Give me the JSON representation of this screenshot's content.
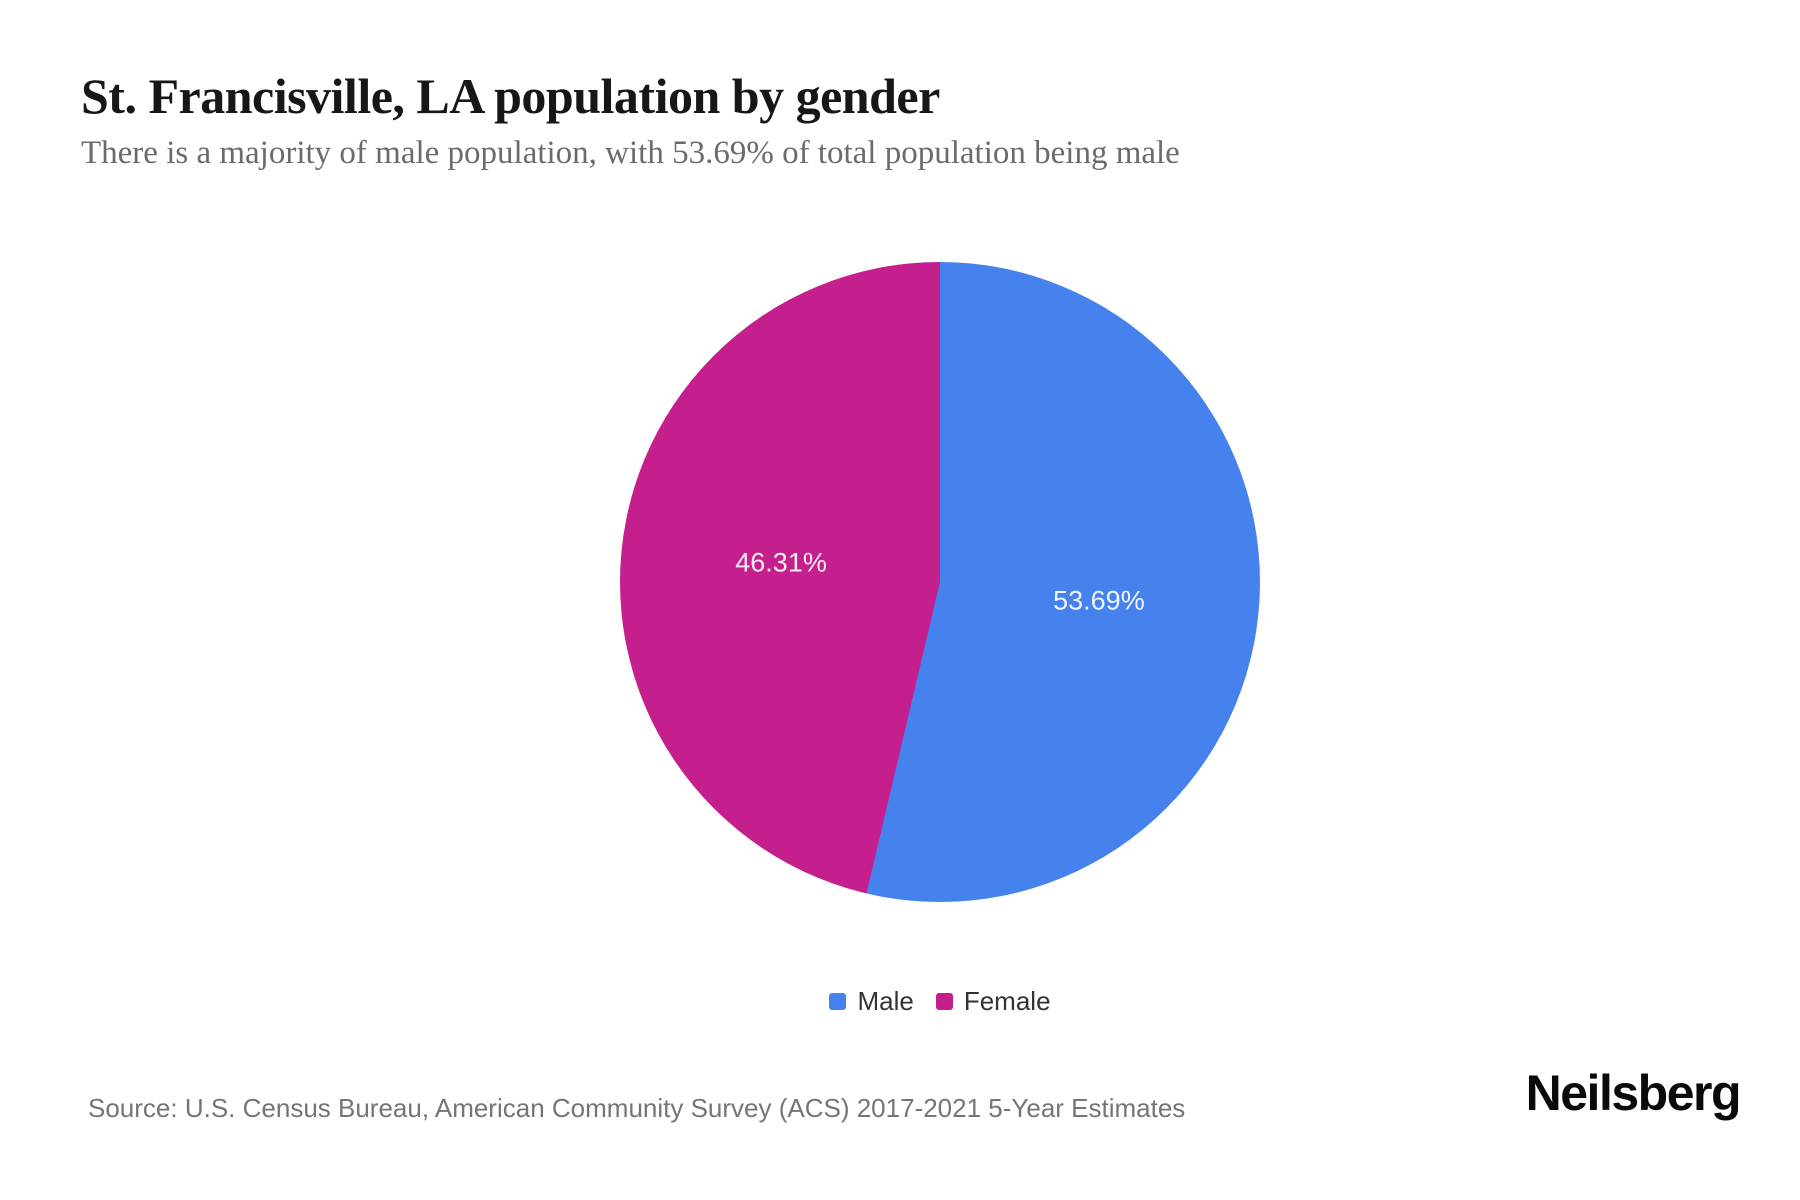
{
  "header": {
    "title": "St. Francisville, LA population by gender",
    "subtitle": "There is a majority of male population, with 53.69% of total population being male"
  },
  "chart_data": {
    "type": "pie",
    "title": "St. Francisville, LA population by gender",
    "subtitle": "There is a majority of male population, with 53.69% of total population being male",
    "slices": [
      {
        "label": "Male",
        "value": 53.69,
        "data_label": "53.69%",
        "color": "#4682EE"
      },
      {
        "label": "Female",
        "value": 46.31,
        "data_label": "46.31%",
        "color": "#C51F8E"
      }
    ],
    "total": 100,
    "unit": "%",
    "start_angle_deg": 0,
    "direction": "clockwise",
    "data_labels_inside": true,
    "data_label_color": "#ffffff",
    "legend_position": "bottom"
  },
  "legend": {
    "items": [
      {
        "label": "Male",
        "color": "#4682EE"
      },
      {
        "label": "Female",
        "color": "#C51F8E"
      }
    ]
  },
  "footer": {
    "source": "Source: U.S. Census Bureau, American Community Survey (ACS) 2017-2021 5-Year Estimates",
    "brand": "Neilsberg"
  }
}
